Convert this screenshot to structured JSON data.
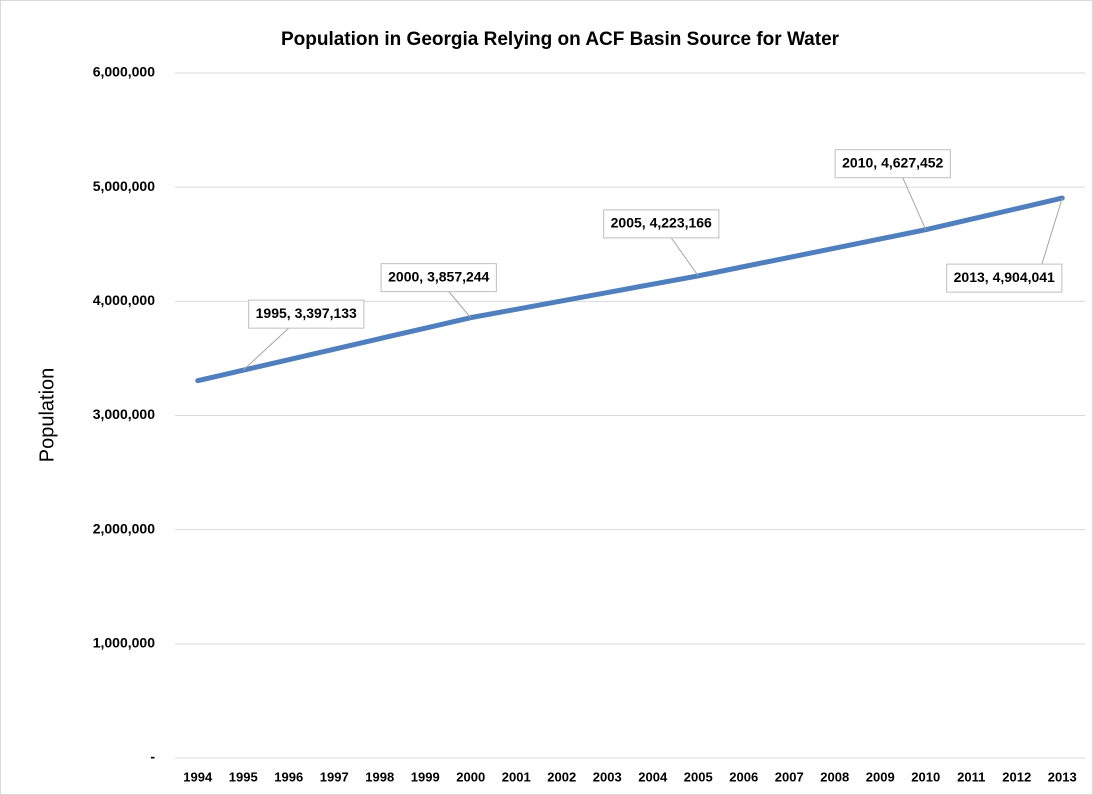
{
  "chart_data": {
    "type": "line",
    "title": "Population in Georgia Relying on ACF Basin Source for Water",
    "y_label": "Population",
    "categories": [
      "1994",
      "1995",
      "1996",
      "1997",
      "1998",
      "1999",
      "2000",
      "2001",
      "2002",
      "2003",
      "2004",
      "2005",
      "2006",
      "2007",
      "2008",
      "2009",
      "2010",
      "2011",
      "2012",
      "2013"
    ],
    "series": [
      {
        "name": "Population",
        "color": "#4f7fbc",
        "values": [
          3305000,
          3397133,
          3489155,
          3581177,
          3673200,
          3765222,
          3857244,
          3930428,
          4003613,
          4076797,
          4149982,
          4223166,
          4304023,
          4384880,
          4465738,
          4546595,
          4627452,
          4719648,
          4811845,
          4904041
        ],
        "value_labels": [
          null,
          "1995, 3,397,133",
          null,
          null,
          null,
          null,
          "2000, 3,857,244",
          null,
          null,
          null,
          null,
          "2005, 4,223,166",
          null,
          null,
          null,
          null,
          "2010, 4,627,452",
          null,
          null,
          "2013, 4,904,041"
        ]
      }
    ],
    "ylim": [
      0,
      6000000
    ],
    "yticks": [
      {
        "value": 0,
        "label": "-"
      },
      {
        "value": 1000000,
        "label": "1,000,000"
      },
      {
        "value": 2000000,
        "label": "2,000,000"
      },
      {
        "value": 3000000,
        "label": "3,000,000"
      },
      {
        "value": 4000000,
        "label": "4,000,000"
      },
      {
        "value": 5000000,
        "label": "5,000,000"
      },
      {
        "value": 6000000,
        "label": "6,000,000"
      }
    ],
    "grid": true
  }
}
